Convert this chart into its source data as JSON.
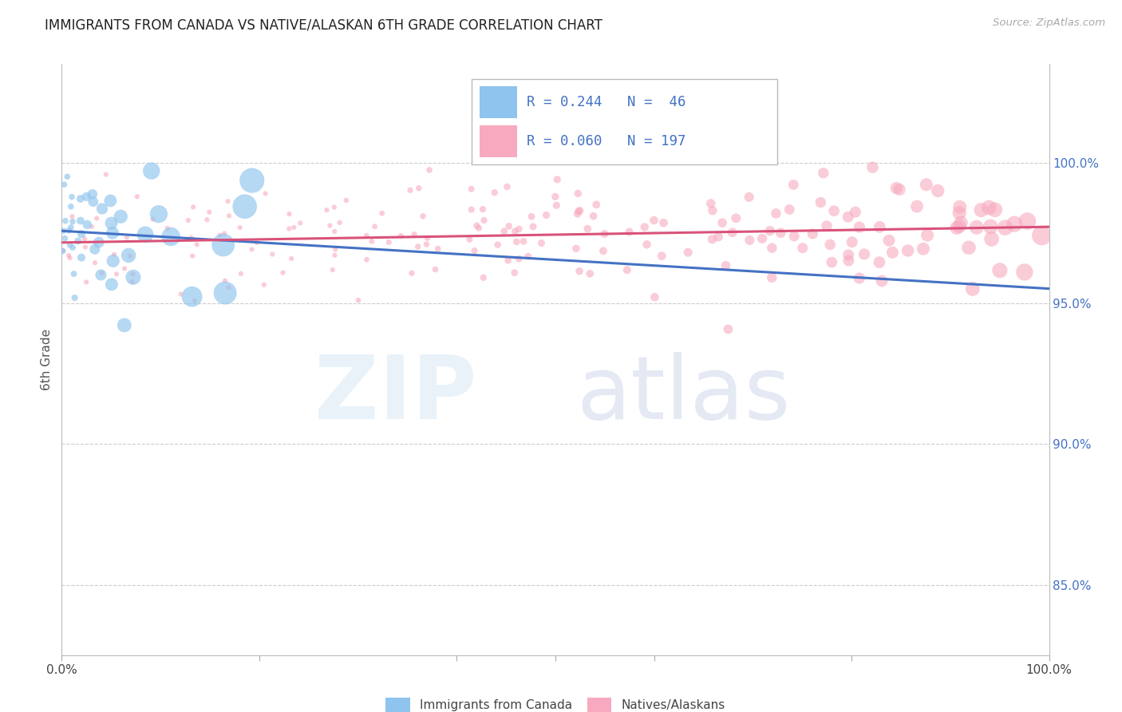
{
  "title": "IMMIGRANTS FROM CANADA VS NATIVE/ALASKAN 6TH GRADE CORRELATION CHART",
  "source": "Source: ZipAtlas.com",
  "ylabel": "6th Grade",
  "ytick_labels": [
    "100.0%",
    "95.0%",
    "90.0%",
    "85.0%"
  ],
  "ytick_values": [
    1.0,
    0.95,
    0.9,
    0.85
  ],
  "xmin": 0.0,
  "xmax": 1.0,
  "ymin": 0.825,
  "ymax": 1.035,
  "R_canada": 0.244,
  "N_canada": 46,
  "R_native": 0.06,
  "N_native": 197,
  "color_canada": "#8EC4EE",
  "color_native": "#F7AABF",
  "line_color_canada": "#4472C4",
  "line_color_native": "#D9527A",
  "background_color": "#FFFFFF",
  "grid_color": "#CCCCCC",
  "title_fontsize": 12,
  "seed_canada": 42,
  "seed_native": 7
}
